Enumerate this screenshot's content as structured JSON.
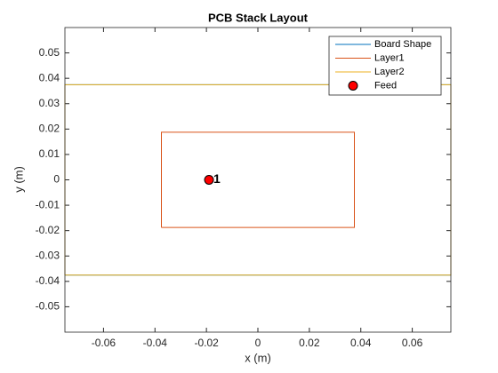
{
  "chart_data": {
    "type": "line",
    "title": "PCB Stack Layout",
    "xlabel": "x (m)",
    "ylabel": "y (m)",
    "xlim": [
      -0.075,
      0.075
    ],
    "ylim": [
      -0.06,
      0.06
    ],
    "xticks": [
      -0.06,
      -0.04,
      -0.02,
      0,
      0.02,
      0.04,
      0.06
    ],
    "yticks": [
      -0.05,
      -0.04,
      -0.03,
      -0.02,
      -0.01,
      0,
      0.01,
      0.02,
      0.03,
      0.04,
      0.05
    ],
    "legend": "northeast",
    "series": [
      {
        "name": "Board Shape",
        "color": "#0072BD",
        "x": [
          -0.075,
          0.075,
          0.075,
          -0.075,
          -0.075
        ],
        "values": [
          -0.0375,
          -0.0375,
          0.0375,
          0.0375,
          -0.0375
        ]
      },
      {
        "name": "Layer1",
        "color": "#D95319",
        "x": [
          -0.0375,
          0.0375,
          0.0375,
          -0.0375,
          -0.0375
        ],
        "values": [
          -0.01875,
          -0.01875,
          0.01875,
          0.01875,
          -0.01875
        ]
      },
      {
        "name": "Layer2",
        "color": "#EDB120",
        "x": [
          -0.075,
          0.075,
          0.075,
          -0.075,
          -0.075
        ],
        "values": [
          -0.0375,
          -0.0375,
          0.0375,
          0.0375,
          -0.0375
        ]
      },
      {
        "name": "Feed",
        "type": "scatter",
        "color": "#FF0000",
        "x": [
          -0.019
        ],
        "values": [
          0
        ],
        "point_labels": [
          "1"
        ]
      }
    ]
  }
}
